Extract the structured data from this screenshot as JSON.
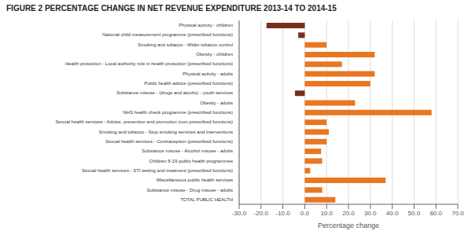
{
  "chart_data": {
    "type": "bar",
    "orientation": "horizontal",
    "title": "FIGURE 2 PERCENTAGE CHANGE IN NET REVENUE EXPENDITURE 2013-14 TO 2014-15",
    "xlabel": "Percentage change",
    "categories": [
      "Physical activity - children",
      "National child measurement programme (prescribed functions)",
      "Smoking and tobacco - Wider tobacco control",
      "Obesity - children",
      "Health protection - Local authority role in health protection  (prescribed functions)",
      "Physical activity - adults",
      "Public health advice (prescribed functions)",
      "Substance misuse - (drugs and alcoho) - youth services",
      "Obesity - adults",
      "NHS health check programme  (prescribed functions)",
      "Sexual health services - Advice, prevention and promotion  (non prescribed functions)",
      "Smoking and tobacco - Stop smoking services and interventions",
      "Sexual health services - Contraception (prescribed functions)",
      "Substance misuse - Alcohol misuse - adults",
      "Children 5-19 public health programmes",
      "Sexual health services - STI testing and treatment (prescribed functions)",
      "Miscellaneous public health services",
      "Substance misuse - Drug misuse - adults",
      "TOTAL PUBLIC HEALTH"
    ],
    "values": [
      -17.5,
      -3.0,
      10.0,
      32.0,
      17.0,
      32.0,
      30.0,
      -4.5,
      23.0,
      58.0,
      10.0,
      11.0,
      10.0,
      7.5,
      8.0,
      2.5,
      37.0,
      8.0,
      14.0
    ],
    "colors": [
      "#7a2e1a",
      "#7a2e1a",
      "#e87722",
      "#e87722",
      "#e87722",
      "#e87722",
      "#e87722",
      "#7a2e1a",
      "#e87722",
      "#e87722",
      "#e87722",
      "#e87722",
      "#e87722",
      "#e87722",
      "#e87722",
      "#e87722",
      "#e87722",
      "#e87722",
      "#e87722"
    ],
    "xlim": [
      -30.0,
      70.0
    ],
    "xticks": [
      {
        "value": -30,
        "label": "-30.0"
      },
      {
        "value": -20,
        "label": "-20.0"
      },
      {
        "value": -10,
        "label": "-10.0"
      },
      {
        "value": 0,
        "label": "0.0"
      },
      {
        "value": 10,
        "label": "10.0"
      },
      {
        "value": 20,
        "label": "20.0"
      },
      {
        "value": 30,
        "label": "30.0"
      },
      {
        "value": 40,
        "label": "40.0"
      },
      {
        "value": 50,
        "label": "50.0"
      },
      {
        "value": 60,
        "label": "60.0"
      },
      {
        "value": 70,
        "label": "70.0"
      }
    ],
    "grid": true
  }
}
